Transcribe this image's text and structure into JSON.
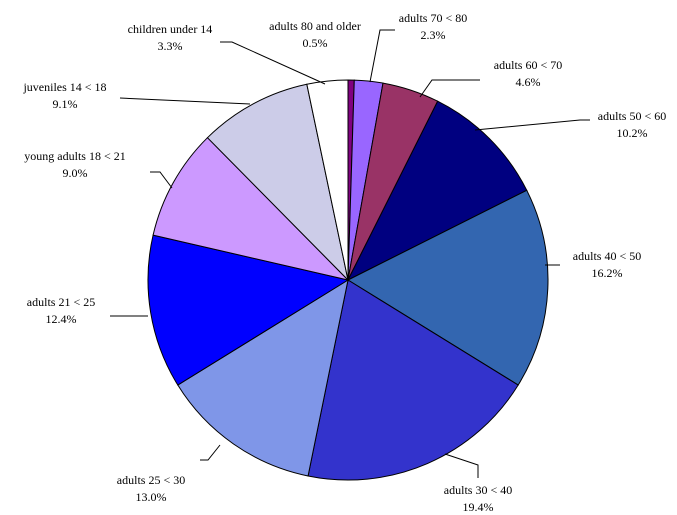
{
  "chart_data": {
    "type": "pie",
    "title": "",
    "start_angle_deg": 0,
    "direction": "clockwise",
    "slices": [
      {
        "label": "adults 80 and older",
        "percent_label": "0.5%",
        "value": 0.5,
        "color": "#800080"
      },
      {
        "label": "adults 70 < 80",
        "percent_label": "2.3%",
        "value": 2.3,
        "color": "#9966FF"
      },
      {
        "label": "adults 60 < 70",
        "percent_label": "4.6%",
        "value": 4.6,
        "color": "#993366"
      },
      {
        "label": "adults 50 < 60",
        "percent_label": "10.2%",
        "value": 10.2,
        "color": "#000080"
      },
      {
        "label": "adults 40 < 50",
        "percent_label": "16.2%",
        "value": 16.2,
        "color": "#3366B0"
      },
      {
        "label": "adults 30 < 40",
        "percent_label": "19.4%",
        "value": 19.4,
        "color": "#3333CC"
      },
      {
        "label": "adults 25 < 30",
        "percent_label": "13.0%",
        "value": 13.0,
        "color": "#7F96E8"
      },
      {
        "label": "adults 21 < 25",
        "percent_label": "12.4%",
        "value": 12.4,
        "color": "#0000FF"
      },
      {
        "label": "young adults 18 < 21",
        "percent_label": "9.0%",
        "value": 9.0,
        "color": "#CC99FF"
      },
      {
        "label": "juveniles 14 < 18",
        "percent_label": "9.1%",
        "value": 9.1,
        "color": "#CCCCE8"
      },
      {
        "label": "children under 14",
        "percent_label": "3.3%",
        "value": 3.3,
        "color": "#FFFFFF"
      }
    ]
  }
}
